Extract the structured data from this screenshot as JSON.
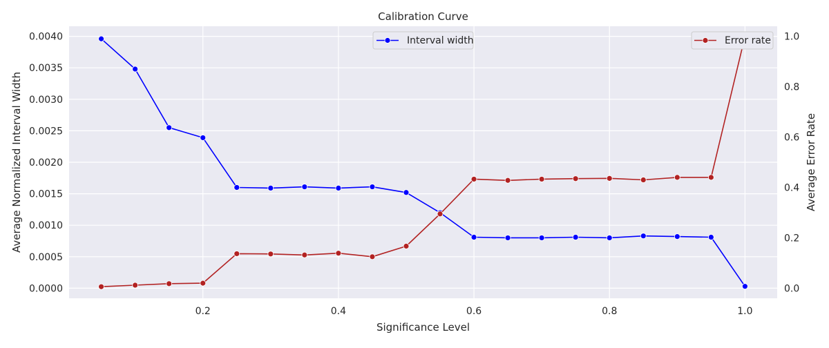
{
  "chart_data": {
    "type": "line",
    "title": "Calibration Curve",
    "xlabel": "Significance Level",
    "ylabel_left": "Average Normalized Interval Width",
    "ylabel_right": "Average Error Rate",
    "x": [
      0.05,
      0.1,
      0.15,
      0.2,
      0.25,
      0.3,
      0.35,
      0.4,
      0.45,
      0.5,
      0.55,
      0.6,
      0.65,
      0.7,
      0.75,
      0.8,
      0.85,
      0.9,
      0.95,
      1.0
    ],
    "xlim": [
      0.0025,
      1.0475
    ],
    "ylim_left": [
      -0.00016,
      0.00416
    ],
    "ylim_right": [
      -0.04,
      1.04
    ],
    "grid": true,
    "x_ticks": [
      {
        "value": 0.2,
        "label": "0.2"
      },
      {
        "value": 0.4,
        "label": "0.4"
      },
      {
        "value": 0.6,
        "label": "0.6"
      },
      {
        "value": 0.8,
        "label": "0.8"
      },
      {
        "value": 1.0,
        "label": "1.0"
      }
    ],
    "y_ticks_left": [
      {
        "value": 0.0,
        "label": "0.0000"
      },
      {
        "value": 0.0005,
        "label": "0.0005"
      },
      {
        "value": 0.001,
        "label": "0.0010"
      },
      {
        "value": 0.0015,
        "label": "0.0015"
      },
      {
        "value": 0.002,
        "label": "0.0020"
      },
      {
        "value": 0.0025,
        "label": "0.0025"
      },
      {
        "value": 0.003,
        "label": "0.0030"
      },
      {
        "value": 0.0035,
        "label": "0.0035"
      },
      {
        "value": 0.004,
        "label": "0.0040"
      }
    ],
    "y_ticks_right": [
      {
        "value": 0.0,
        "label": "0.0"
      },
      {
        "value": 0.2,
        "label": "0.2"
      },
      {
        "value": 0.4,
        "label": "0.4"
      },
      {
        "value": 0.6,
        "label": "0.6"
      },
      {
        "value": 0.8,
        "label": "0.8"
      },
      {
        "value": 1.0,
        "label": "1.0"
      }
    ],
    "series": [
      {
        "name": "Interval width",
        "axis": "left",
        "color": "#0000ff",
        "legend_position": "upper-center",
        "values": [
          0.00396,
          0.00348,
          0.00255,
          0.00239,
          0.0016,
          0.00159,
          0.00161,
          0.00159,
          0.00161,
          0.00152,
          0.0012,
          0.00081,
          0.0008,
          0.0008,
          0.00081,
          0.0008,
          0.00083,
          0.00082,
          0.00081,
          3e-05
        ]
      },
      {
        "name": "Error rate",
        "axis": "right",
        "color": "#b22222",
        "legend_position": "upper-right",
        "values": [
          0.006,
          0.012,
          0.018,
          0.02,
          0.137,
          0.136,
          0.132,
          0.139,
          0.125,
          0.167,
          0.295,
          0.433,
          0.428,
          0.433,
          0.435,
          0.436,
          0.43,
          0.44,
          0.44,
          1.0
        ]
      }
    ]
  }
}
